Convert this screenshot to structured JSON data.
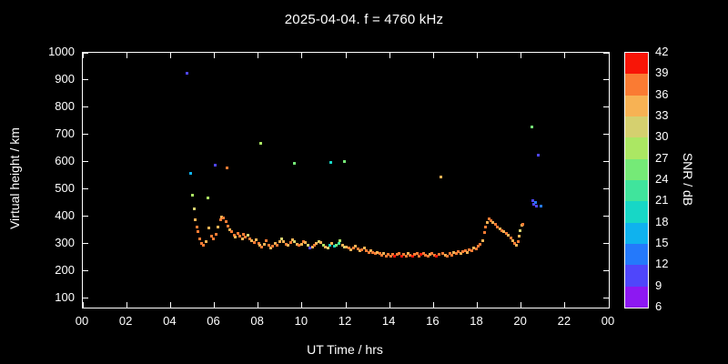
{
  "title": "2025-04-04. f = 4760 kHz",
  "chart_data": {
    "type": "scatter",
    "title": "2025-04-04. f = 4760 kHz",
    "xlabel": "UT Time / hrs",
    "ylabel": "Virtual height / km",
    "colorbar_label": "SNR / dB",
    "background": "#000000",
    "frame_color": "#ffffff",
    "xlim": [
      0,
      24
    ],
    "ylim": [
      65,
      1000
    ],
    "x_ticks": [
      0,
      2,
      4,
      6,
      8,
      10,
      12,
      14,
      16,
      18,
      20,
      22,
      24
    ],
    "x_tick_labels": [
      "00",
      "02",
      "04",
      "06",
      "08",
      "10",
      "12",
      "14",
      "16",
      "18",
      "20",
      "22",
      "00"
    ],
    "y_ticks": [
      100,
      200,
      300,
      400,
      500,
      600,
      700,
      800,
      900,
      1000
    ],
    "y_tick_labels": [
      "100",
      "200",
      "300",
      "400",
      "500",
      "600",
      "700",
      "800",
      "900",
      "1000"
    ],
    "snr_range": [
      6,
      42
    ],
    "snr_ticks": [
      6,
      9,
      12,
      15,
      18,
      21,
      24,
      27,
      30,
      33,
      36,
      39,
      42
    ],
    "snr_colors_low_to_high": [
      "#8d18f2",
      "#4f46fb",
      "#2479fb",
      "#0fb2ee",
      "#17d7c6",
      "#40e49c",
      "#75ea77",
      "#abe763",
      "#d5d06f",
      "#f7b254",
      "#fa7b33",
      "#f81507"
    ],
    "points": [
      [
        4.75,
        925,
        11
      ],
      [
        4.9,
        560,
        17
      ],
      [
        4.97,
        480,
        28
      ],
      [
        5.05,
        428,
        31
      ],
      [
        5.12,
        388,
        34
      ],
      [
        5.18,
        362,
        37
      ],
      [
        5.25,
        345,
        37
      ],
      [
        5.3,
        318,
        37
      ],
      [
        5.4,
        302,
        37
      ],
      [
        5.5,
        295,
        37
      ],
      [
        5.6,
        308,
        34
      ],
      [
        5.68,
        468,
        29
      ],
      [
        5.75,
        360,
        34
      ],
      [
        5.85,
        330,
        37
      ],
      [
        5.95,
        318,
        37
      ],
      [
        6.02,
        590,
        11
      ],
      [
        6.05,
        335,
        37
      ],
      [
        6.15,
        362,
        34
      ],
      [
        6.25,
        388,
        37
      ],
      [
        6.3,
        400,
        34
      ],
      [
        6.4,
        396,
        37
      ],
      [
        6.5,
        382,
        37
      ],
      [
        6.55,
        580,
        37
      ],
      [
        6.6,
        366,
        37
      ],
      [
        6.7,
        352,
        34
      ],
      [
        6.78,
        345,
        37
      ],
      [
        6.88,
        332,
        37
      ],
      [
        6.95,
        326,
        34
      ],
      [
        7.05,
        340,
        37
      ],
      [
        7.15,
        330,
        37
      ],
      [
        7.25,
        320,
        34
      ],
      [
        7.3,
        335,
        37
      ],
      [
        7.4,
        326,
        37
      ],
      [
        7.5,
        332,
        31
      ],
      [
        7.6,
        320,
        37
      ],
      [
        7.7,
        312,
        34
      ],
      [
        7.8,
        306,
        37
      ],
      [
        7.9,
        316,
        34
      ],
      [
        8.0,
        302,
        37
      ],
      [
        8.05,
        296,
        34
      ],
      [
        8.1,
        670,
        29
      ],
      [
        8.15,
        290,
        37
      ],
      [
        8.25,
        300,
        34
      ],
      [
        8.35,
        312,
        37
      ],
      [
        8.45,
        296,
        37
      ],
      [
        8.55,
        286,
        34
      ],
      [
        8.65,
        292,
        37
      ],
      [
        8.75,
        302,
        34
      ],
      [
        8.85,
        296,
        37
      ],
      [
        8.95,
        308,
        34
      ],
      [
        9.05,
        318,
        31
      ],
      [
        9.15,
        310,
        34
      ],
      [
        9.25,
        300,
        37
      ],
      [
        9.35,
        294,
        34
      ],
      [
        9.45,
        306,
        37
      ],
      [
        9.55,
        316,
        34
      ],
      [
        9.62,
        595,
        26
      ],
      [
        9.65,
        310,
        31
      ],
      [
        9.75,
        300,
        34
      ],
      [
        9.85,
        294,
        37
      ],
      [
        9.95,
        300,
        34
      ],
      [
        10.05,
        310,
        37
      ],
      [
        10.15,
        304,
        34
      ],
      [
        10.25,
        294,
        31
      ],
      [
        10.35,
        284,
        11
      ],
      [
        10.45,
        290,
        34
      ],
      [
        10.55,
        296,
        37
      ],
      [
        10.65,
        302,
        34
      ],
      [
        10.75,
        310,
        31
      ],
      [
        10.85,
        304,
        34
      ],
      [
        10.95,
        294,
        27
      ],
      [
        11.05,
        290,
        34
      ],
      [
        11.15,
        286,
        31
      ],
      [
        11.25,
        296,
        20
      ],
      [
        11.3,
        600,
        20
      ],
      [
        11.35,
        302,
        34
      ],
      [
        11.45,
        292,
        18
      ],
      [
        11.55,
        296,
        25
      ],
      [
        11.65,
        302,
        21
      ],
      [
        11.72,
        312,
        27
      ],
      [
        11.82,
        296,
        34
      ],
      [
        11.9,
        602,
        25
      ],
      [
        11.92,
        290,
        31
      ],
      [
        12.02,
        288,
        34
      ],
      [
        12.12,
        284,
        37
      ],
      [
        12.22,
        280,
        34
      ],
      [
        12.32,
        286,
        37
      ],
      [
        12.42,
        292,
        34
      ],
      [
        12.52,
        282,
        37
      ],
      [
        12.62,
        276,
        34
      ],
      [
        12.72,
        280,
        37
      ],
      [
        12.82,
        286,
        34
      ],
      [
        12.92,
        276,
        37
      ],
      [
        13.02,
        270,
        37
      ],
      [
        13.12,
        276,
        34
      ],
      [
        13.22,
        270,
        37
      ],
      [
        13.32,
        265,
        37
      ],
      [
        13.42,
        270,
        34
      ],
      [
        13.52,
        264,
        37
      ],
      [
        13.62,
        260,
        37
      ],
      [
        13.72,
        266,
        34
      ],
      [
        13.82,
        256,
        37
      ],
      [
        13.92,
        262,
        37
      ],
      [
        14.02,
        256,
        37
      ],
      [
        14.12,
        262,
        37
      ],
      [
        14.22,
        256,
        40
      ],
      [
        14.32,
        262,
        37
      ],
      [
        14.42,
        266,
        37
      ],
      [
        14.52,
        256,
        40
      ],
      [
        14.62,
        262,
        37
      ],
      [
        14.72,
        256,
        37
      ],
      [
        14.82,
        266,
        34
      ],
      [
        14.92,
        260,
        37
      ],
      [
        15.02,
        256,
        40
      ],
      [
        15.12,
        262,
        37
      ],
      [
        15.22,
        266,
        37
      ],
      [
        15.32,
        256,
        37
      ],
      [
        15.42,
        262,
        40
      ],
      [
        15.52,
        266,
        37
      ],
      [
        15.62,
        260,
        37
      ],
      [
        15.72,
        256,
        37
      ],
      [
        15.82,
        262,
        34
      ],
      [
        15.92,
        266,
        37
      ],
      [
        16.02,
        260,
        37
      ],
      [
        16.12,
        256,
        40
      ],
      [
        16.22,
        262,
        37
      ],
      [
        16.3,
        545,
        34
      ],
      [
        16.42,
        266,
        37
      ],
      [
        16.52,
        260,
        34
      ],
      [
        16.62,
        256,
        37
      ],
      [
        16.72,
        266,
        37
      ],
      [
        16.82,
        260,
        37
      ],
      [
        16.92,
        270,
        34
      ],
      [
        17.02,
        266,
        37
      ],
      [
        17.12,
        272,
        37
      ],
      [
        17.22,
        266,
        34
      ],
      [
        17.32,
        272,
        37
      ],
      [
        17.42,
        276,
        37
      ],
      [
        17.52,
        270,
        34
      ],
      [
        17.62,
        280,
        37
      ],
      [
        17.72,
        276,
        37
      ],
      [
        17.82,
        286,
        34
      ],
      [
        17.92,
        282,
        37
      ],
      [
        18.02,
        292,
        37
      ],
      [
        18.12,
        300,
        37
      ],
      [
        18.22,
        312,
        34
      ],
      [
        18.3,
        342,
        37
      ],
      [
        18.36,
        362,
        37
      ],
      [
        18.42,
        380,
        34
      ],
      [
        18.5,
        392,
        37
      ],
      [
        18.6,
        386,
        37
      ],
      [
        18.7,
        380,
        34
      ],
      [
        18.8,
        372,
        37
      ],
      [
        18.9,
        362,
        37
      ],
      [
        19.0,
        356,
        34
      ],
      [
        19.1,
        350,
        37
      ],
      [
        19.2,
        346,
        34
      ],
      [
        19.3,
        340,
        37
      ],
      [
        19.4,
        332,
        34
      ],
      [
        19.5,
        322,
        37
      ],
      [
        19.6,
        312,
        34
      ],
      [
        19.7,
        302,
        37
      ],
      [
        19.78,
        296,
        34
      ],
      [
        19.84,
        310,
        37
      ],
      [
        19.9,
        330,
        34
      ],
      [
        19.95,
        350,
        31
      ],
      [
        20.0,
        368,
        34
      ],
      [
        20.05,
        372,
        37
      ],
      [
        20.45,
        730,
        24
      ],
      [
        20.5,
        458,
        11
      ],
      [
        20.55,
        447,
        9
      ],
      [
        20.62,
        452,
        12
      ],
      [
        20.68,
        440,
        10
      ],
      [
        20.75,
        627,
        11
      ],
      [
        20.9,
        438,
        12
      ]
    ]
  }
}
